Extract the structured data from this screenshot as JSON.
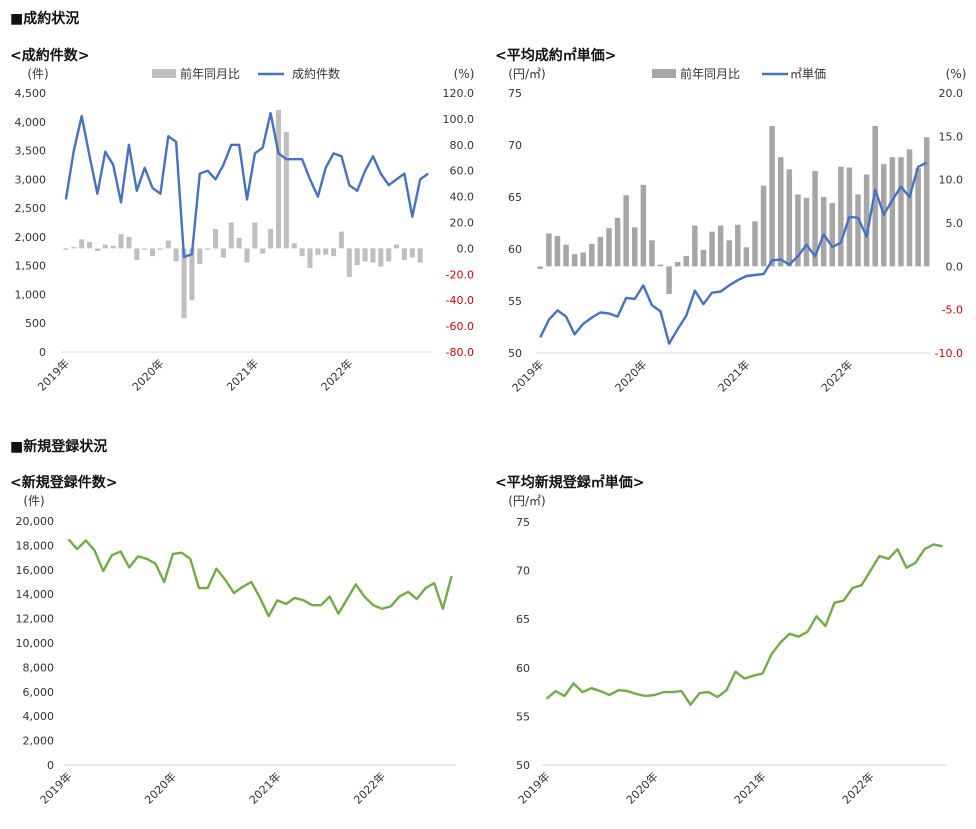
{
  "sections": {
    "contracts": "■成約状況",
    "registrations": "■新規登録状況"
  },
  "colors": {
    "blue": "#4472c4",
    "green": "#70ad47",
    "gray_light": "#bfbfbf",
    "gray_dark": "#a6a6a6",
    "neg_red": "#e00000"
  },
  "chart_data": [
    {
      "id": "seiyaku_kensu",
      "type": "bar+line",
      "title": "<成約件数>",
      "y_unit_left": "(件)",
      "y_unit_right": "(%)",
      "ylim_left": [
        0,
        4500
      ],
      "yticks_left": [
        "4,500",
        "4,000",
        "3,500",
        "3,000",
        "2,500",
        "2,000",
        "1,500",
        "1,000",
        "500",
        "0"
      ],
      "ylim_right": [
        -80,
        120
      ],
      "yticks_right": [
        "120.0",
        "100.0",
        "80.0",
        "60.0",
        "40.0",
        "20.0",
        "0.0",
        "-20.0",
        "-40.0",
        "-60.0",
        "-80.0"
      ],
      "x_labels": [
        "2019年",
        "2020年",
        "2021年",
        "2022年"
      ],
      "legend": [
        "前年同月比",
        "成約件数"
      ],
      "series": [
        {
          "name": "前年同月比",
          "kind": "bar",
          "values": [
            -1,
            1,
            7,
            5,
            -2,
            3,
            2,
            11,
            9,
            -9,
            -1,
            -6,
            -1,
            6,
            -10,
            -54,
            -40,
            -12,
            -1,
            15,
            -7,
            20,
            8,
            -11,
            20,
            -4,
            15,
            107,
            90,
            4,
            -6,
            -15,
            -5,
            -5,
            -6,
            13,
            -22,
            -13,
            -10,
            -11,
            -14,
            -10,
            3,
            -9,
            -7,
            -11
          ],
          "color": "#bfbfbf"
        },
        {
          "name": "成約件数",
          "kind": "line",
          "values": [
            2650,
            3500,
            4100,
            3400,
            2750,
            3480,
            3250,
            2600,
            3600,
            2800,
            3200,
            2850,
            2750,
            3750,
            3650,
            1650,
            1700,
            3100,
            3150,
            3000,
            3250,
            3600,
            3600,
            2650,
            3450,
            3550,
            4150,
            3450,
            3350,
            3350,
            3350,
            3000,
            2700,
            3200,
            3450,
            3400,
            2900,
            2800,
            3150,
            3400,
            3100,
            2900,
            3000,
            3100,
            2350,
            3000,
            3100
          ]
        }
      ]
    },
    {
      "id": "heikin_seiyaku_tanka",
      "type": "bar+line",
      "title": "<平均成約㎡単価>",
      "y_unit_left": "(円/㎡)",
      "y_unit_right": "(%)",
      "ylim_left": [
        50,
        75
      ],
      "yticks_left": [
        "75",
        "70",
        "65",
        "60",
        "55",
        "50"
      ],
      "ylim_right": [
        -10,
        20
      ],
      "yticks_right": [
        "20.0",
        "15.0",
        "10.0",
        "5.0",
        "0.0",
        "-5.0",
        "-10.0"
      ],
      "x_labels": [
        "2019年",
        "2020年",
        "2021年",
        "2022年"
      ],
      "legend": [
        "前年同月比",
        "㎡単価"
      ],
      "series": [
        {
          "name": "前年同月比",
          "kind": "bar",
          "values": [
            -0.3,
            3.8,
            3.5,
            2.5,
            1.4,
            1.6,
            2.6,
            3.4,
            4.4,
            5.6,
            8.2,
            4.5,
            9.4,
            3.0,
            0.2,
            -3.2,
            0.5,
            1.2,
            4.7,
            1.9,
            4.0,
            4.7,
            3.0,
            4.8,
            2.2,
            5.2,
            9.3,
            16.2,
            12.6,
            11.2,
            8.3,
            7.9,
            11.0,
            8.0,
            7.3,
            11.5,
            11.4,
            8.3,
            10.6,
            16.2,
            11.8,
            12.6,
            12.6,
            13.5,
            11.3,
            14.9
          ],
          "color": "#a6a6a6"
        },
        {
          "name": "㎡単価",
          "kind": "line",
          "values": [
            51.5,
            53.2,
            54.1,
            53.5,
            51.8,
            52.8,
            53.4,
            53.9,
            53.8,
            53.5,
            55.3,
            55.2,
            56.5,
            54.6,
            54.0,
            50.9,
            52.3,
            53.6,
            56.0,
            54.7,
            55.8,
            55.9,
            56.5,
            57.0,
            57.4,
            57.5,
            57.6,
            58.9,
            59.0,
            58.5,
            59.3,
            60.4,
            59.3,
            61.4,
            60.2,
            60.6,
            63.1,
            63.0,
            61.2,
            65.7,
            63.3,
            64.7,
            66.0,
            65.0,
            67.9,
            68.3
          ]
        }
      ]
    },
    {
      "id": "shinki_toroku_kensu",
      "type": "line",
      "title": "<新規登録件数>",
      "y_unit_left": "(件)",
      "ylim_left": [
        0,
        20000
      ],
      "yticks_left": [
        "20,000",
        "18,000",
        "16,000",
        "14,000",
        "12,000",
        "10,000",
        "8,000",
        "6,000",
        "4,000",
        "2,000",
        "0"
      ],
      "x_labels": [
        "2019年",
        "2020年",
        "2021年",
        "2022年"
      ],
      "series": [
        {
          "name": "",
          "kind": "line",
          "values": [
            18500,
            17700,
            18400,
            17600,
            15900,
            17200,
            17500,
            16200,
            17100,
            16900,
            16500,
            15000,
            17300,
            17400,
            16900,
            14500,
            14500,
            16100,
            15200,
            14100,
            14600,
            15000,
            13700,
            12200,
            13500,
            13200,
            13700,
            13500,
            13100,
            13100,
            13800,
            12400,
            13600,
            14800,
            13800,
            13100,
            12800,
            13000,
            13800,
            14200,
            13600,
            14500,
            14900,
            12800,
            15500
          ]
        }
      ]
    },
    {
      "id": "heikin_shinki_toroku_tanka",
      "type": "line",
      "title": "<平均新規登録㎡単価>",
      "y_unit_left": "(円/㎡)",
      "ylim_left": [
        50,
        75
      ],
      "yticks_left": [
        "75",
        "70",
        "65",
        "60",
        "55",
        "50"
      ],
      "x_labels": [
        "2019年",
        "2020年",
        "2021年",
        "2022年"
      ],
      "series": [
        {
          "name": "",
          "kind": "line",
          "values": [
            56.8,
            57.6,
            57.1,
            58.4,
            57.5,
            57.9,
            57.6,
            57.2,
            57.7,
            57.6,
            57.3,
            57.1,
            57.2,
            57.5,
            57.5,
            57.6,
            56.2,
            57.4,
            57.5,
            57.0,
            57.7,
            59.6,
            58.9,
            59.2,
            59.4,
            61.4,
            62.6,
            63.5,
            63.2,
            63.7,
            65.3,
            64.3,
            66.7,
            66.9,
            68.2,
            68.5,
            70.0,
            71.5,
            71.2,
            72.2,
            70.3,
            70.8,
            72.2,
            72.7,
            72.5
          ]
        }
      ]
    }
  ]
}
